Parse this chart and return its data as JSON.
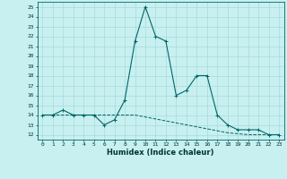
{
  "xlabel": "Humidex (Indice chaleur)",
  "bg_color": "#c8f0f0",
  "line_color": "#006666",
  "grid_color": "#a8dada",
  "xlim": [
    -0.5,
    23.5
  ],
  "ylim": [
    11.5,
    25.5
  ],
  "xticks": [
    0,
    1,
    2,
    3,
    4,
    5,
    6,
    7,
    8,
    9,
    10,
    11,
    12,
    13,
    14,
    15,
    16,
    17,
    18,
    19,
    20,
    21,
    22,
    23
  ],
  "yticks": [
    12,
    13,
    14,
    15,
    16,
    17,
    18,
    19,
    20,
    21,
    22,
    23,
    24,
    25
  ],
  "x_main": [
    0,
    1,
    2,
    3,
    4,
    5,
    6,
    7,
    8,
    9,
    10,
    11,
    12,
    13,
    14,
    15,
    16,
    17,
    18,
    19,
    20,
    21,
    22,
    23
  ],
  "y_main": [
    14,
    14,
    14.5,
    14,
    14,
    14,
    13,
    13.5,
    15.5,
    21.5,
    25,
    22,
    21.5,
    16,
    16.5,
    18,
    18,
    14,
    13,
    12.5,
    12.5,
    12.5,
    12,
    12
  ],
  "x_base": [
    0,
    1,
    2,
    3,
    4,
    5,
    6,
    7,
    8,
    9,
    10,
    11,
    12,
    13,
    14,
    15,
    16,
    17,
    18,
    19,
    20,
    21,
    22,
    23
  ],
  "y_base": [
    14,
    14,
    14,
    14,
    14,
    14,
    14,
    14,
    14,
    14,
    13.8,
    13.6,
    13.4,
    13.2,
    13.0,
    12.8,
    12.6,
    12.4,
    12.2,
    12.1,
    12.0,
    12.0,
    12.0,
    12.0
  ]
}
